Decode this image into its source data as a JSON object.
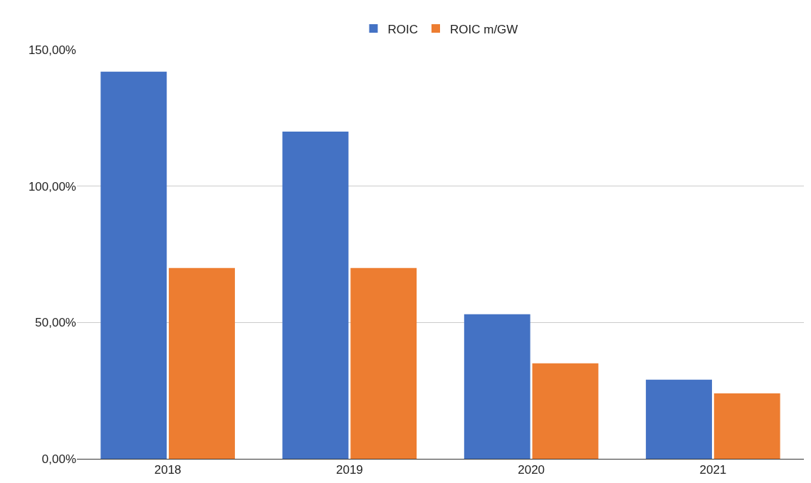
{
  "chart_data": {
    "type": "bar",
    "categories": [
      "2018",
      "2019",
      "2020",
      "2021"
    ],
    "series": [
      {
        "name": "ROIC",
        "color": "#4472c4",
        "values": [
          142,
          120,
          53,
          29
        ]
      },
      {
        "name": "ROIC m/GW",
        "color": "#ed7d31",
        "values": [
          70,
          70,
          35,
          24
        ]
      }
    ],
    "ylim": [
      0,
      150
    ],
    "yticks": [
      {
        "value": 0,
        "label": "0,00%"
      },
      {
        "value": 50,
        "label": "50,00%"
      },
      {
        "value": 100,
        "label": "100,00%"
      },
      {
        "value": 150,
        "label": "150,00%"
      }
    ],
    "grid": "y",
    "legend": "top"
  }
}
